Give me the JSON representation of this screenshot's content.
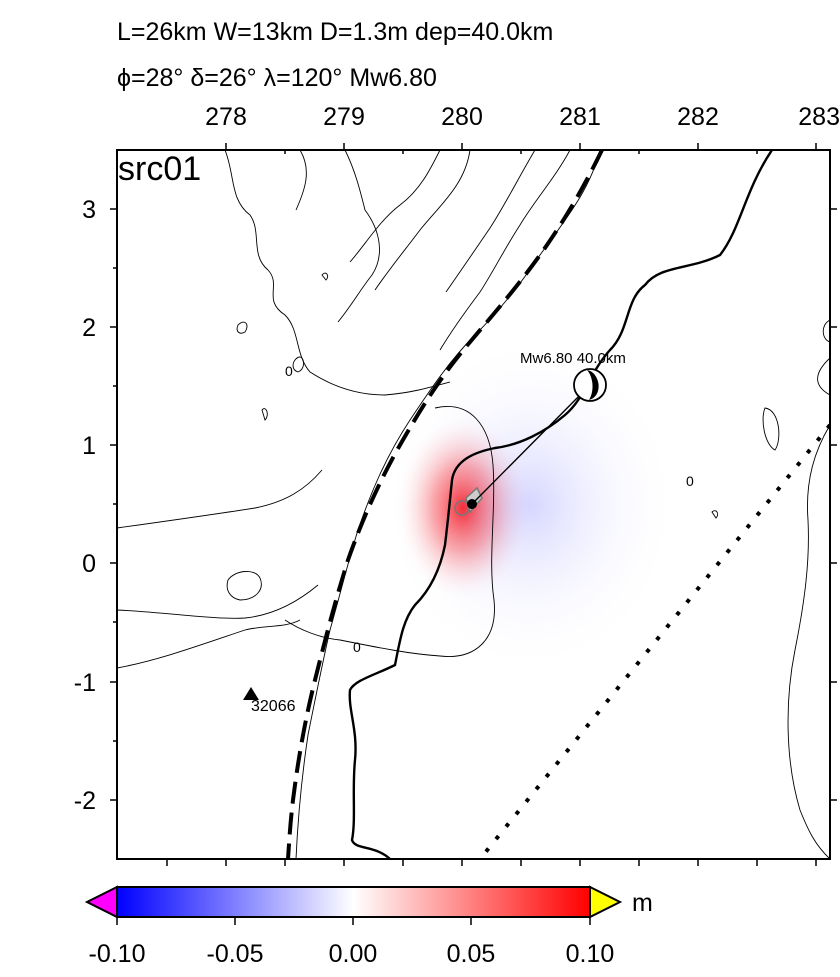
{
  "header": {
    "line1": "L=26km W=13km D=1.3m dep=40.0km",
    "line2": "ϕ=28° δ=26° λ=120° Mw6.80"
  },
  "map": {
    "panel_label": "src01",
    "x_ticks": [
      "278",
      "279",
      "280",
      "281",
      "282",
      "283"
    ],
    "y_ticks": [
      "3",
      "2",
      "1",
      "0",
      "-1",
      "-2"
    ],
    "mechanism_label": "Mw6.80  40.0km",
    "station_label": "32066",
    "contour_label": "0",
    "contour_label_alt": "0"
  },
  "colorbar": {
    "unit": "m",
    "ticks": [
      "-0.10",
      "-0.05",
      "0.00",
      "0.05",
      "0.10"
    ],
    "range": [
      -0.1,
      0.1
    ],
    "colors": {
      "negative": "#0000ff",
      "zero": "#ffffff",
      "positive": "#ff0000",
      "under": "#ff00ff",
      "over": "#ffff00"
    }
  }
}
